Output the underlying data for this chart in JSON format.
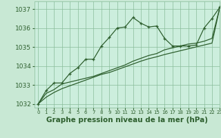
{
  "title": "Graphe pression niveau de la mer (hPa)",
  "background_color": "#c8e8d4",
  "plot_bg_color": "#cceedd",
  "grid_color": "#88bb99",
  "line_color": "#2d5e2d",
  "xlim": [
    -0.5,
    23
  ],
  "ylim": [
    1031.8,
    1037.4
  ],
  "xlabel_ticks": [
    0,
    1,
    2,
    3,
    4,
    5,
    6,
    7,
    8,
    9,
    10,
    11,
    12,
    13,
    14,
    15,
    16,
    17,
    18,
    19,
    20,
    21,
    22,
    23
  ],
  "ylabel_ticks": [
    1032,
    1033,
    1034,
    1035,
    1036,
    1037
  ],
  "series1_x": [
    0,
    1,
    2,
    3,
    4,
    5,
    6,
    7,
    8,
    9,
    10,
    11,
    12,
    13,
    14,
    15,
    16,
    17,
    18,
    19,
    20,
    21,
    22,
    23
  ],
  "series1_y": [
    1032.0,
    1032.7,
    1033.1,
    1033.1,
    1033.6,
    1033.9,
    1034.35,
    1034.35,
    1035.05,
    1035.5,
    1036.0,
    1036.05,
    1036.55,
    1036.25,
    1036.05,
    1036.1,
    1035.45,
    1035.05,
    1035.05,
    1035.05,
    1035.1,
    1036.0,
    1036.5,
    1037.1
  ],
  "series2_x": [
    0,
    1,
    2,
    3,
    4,
    5,
    6,
    7,
    8,
    9,
    10,
    11,
    12,
    13,
    14,
    15,
    16,
    17,
    18,
    19,
    20,
    21,
    22,
    23
  ],
  "series2_y": [
    1032.0,
    1032.55,
    1032.75,
    1033.05,
    1033.15,
    1033.25,
    1033.35,
    1033.45,
    1033.6,
    1033.75,
    1033.9,
    1034.05,
    1034.25,
    1034.4,
    1034.55,
    1034.65,
    1034.85,
    1034.95,
    1035.05,
    1035.15,
    1035.2,
    1035.3,
    1035.45,
    1037.1
  ],
  "series3_x": [
    0,
    1,
    2,
    3,
    4,
    5,
    6,
    7,
    8,
    9,
    10,
    11,
    12,
    13,
    14,
    15,
    16,
    17,
    18,
    19,
    20,
    21,
    22,
    23
  ],
  "series3_y": [
    1032.0,
    1032.35,
    1032.6,
    1032.8,
    1032.95,
    1033.1,
    1033.25,
    1033.4,
    1033.55,
    1033.65,
    1033.8,
    1033.95,
    1034.1,
    1034.25,
    1034.38,
    1034.48,
    1034.6,
    1034.7,
    1034.8,
    1034.9,
    1035.0,
    1035.1,
    1035.2,
    1037.1
  ],
  "title_fontsize": 7.5,
  "tick_fontsize": 6.5,
  "xtick_fontsize": 5.0
}
